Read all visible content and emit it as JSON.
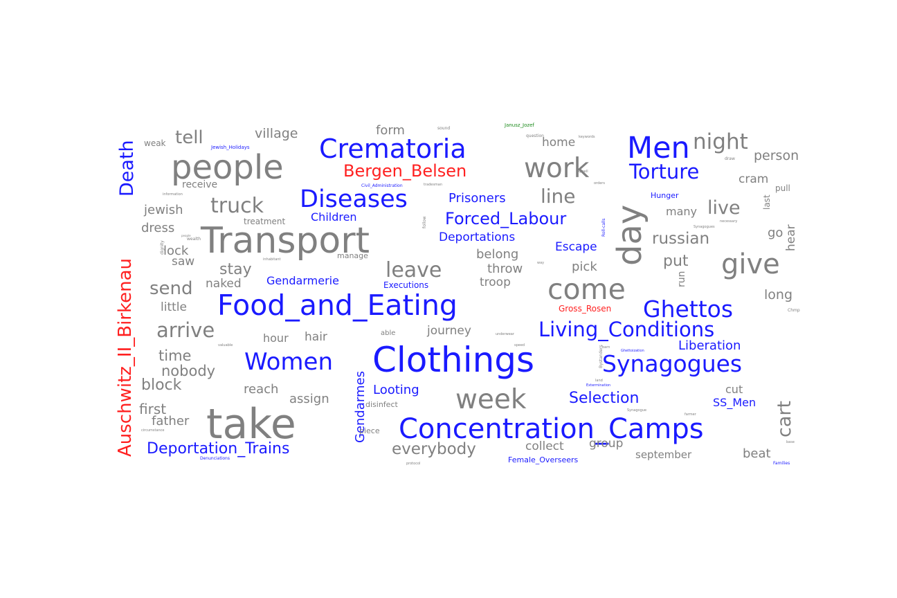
{
  "colors": {
    "gray": "#808080",
    "blue": "#1a1aff",
    "red": "#ff2020",
    "green": "#1a8a1a"
  },
  "words": [
    {
      "text": "take",
      "color": "gray"
    },
    {
      "text": "Clothings",
      "color": "blue"
    },
    {
      "text": "Transport",
      "color": "gray"
    },
    {
      "text": "Food_and_Eating",
      "color": "blue"
    },
    {
      "text": "people",
      "color": "gray"
    },
    {
      "text": "Concentration_Camps",
      "color": "blue"
    },
    {
      "text": "Crematoria",
      "color": "blue"
    },
    {
      "text": "Men",
      "color": "blue"
    },
    {
      "text": "day",
      "color": "gray"
    },
    {
      "text": "come",
      "color": "gray"
    },
    {
      "text": "week",
      "color": "gray"
    },
    {
      "text": "give",
      "color": "gray"
    },
    {
      "text": "work",
      "color": "gray"
    },
    {
      "text": "Synagogues",
      "color": "blue"
    },
    {
      "text": "Women",
      "color": "blue"
    },
    {
      "text": "Ghettos",
      "color": "blue"
    },
    {
      "text": "Diseases",
      "color": "blue"
    },
    {
      "text": "Living_Conditions",
      "color": "blue"
    },
    {
      "text": "Auschwitz_II_Birkenau",
      "color": "red"
    },
    {
      "text": "Death",
      "color": "blue"
    },
    {
      "text": "Torture",
      "color": "blue"
    },
    {
      "text": "night",
      "color": "gray"
    },
    {
      "text": "Bergen_Belsen",
      "color": "red"
    },
    {
      "text": "Deportation_Trains",
      "color": "blue"
    },
    {
      "text": "everybody",
      "color": "gray"
    },
    {
      "text": "leave",
      "color": "gray"
    },
    {
      "text": "truck",
      "color": "gray"
    },
    {
      "text": "arrive",
      "color": "gray"
    },
    {
      "text": "cart",
      "color": "gray"
    },
    {
      "text": "live",
      "color": "gray"
    },
    {
      "text": "line",
      "color": "gray"
    },
    {
      "text": "Forced_Labour",
      "color": "blue"
    },
    {
      "text": "Selection",
      "color": "blue"
    },
    {
      "text": "send",
      "color": "gray"
    },
    {
      "text": "tell",
      "color": "gray"
    },
    {
      "text": "russian",
      "color": "gray"
    },
    {
      "text": "put",
      "color": "gray"
    },
    {
      "text": "nobody",
      "color": "gray"
    },
    {
      "text": "time",
      "color": "gray"
    },
    {
      "text": "block",
      "color": "gray"
    },
    {
      "text": "stay",
      "color": "gray"
    },
    {
      "text": "person",
      "color": "gray"
    },
    {
      "text": "Liberation",
      "color": "blue"
    },
    {
      "text": "Looting",
      "color": "blue"
    },
    {
      "text": "Gendarmes",
      "color": "blue"
    },
    {
      "text": "Prisoners",
      "color": "blue"
    },
    {
      "text": "village",
      "color": "gray"
    },
    {
      "text": "form",
      "color": "gray"
    },
    {
      "text": "Deportations",
      "color": "blue"
    },
    {
      "text": "Escape",
      "color": "blue"
    },
    {
      "text": "SS_Men",
      "color": "blue"
    },
    {
      "text": "Children",
      "color": "blue"
    },
    {
      "text": "Gendarmerie",
      "color": "blue"
    },
    {
      "text": "reach",
      "color": "gray"
    },
    {
      "text": "assign",
      "color": "gray"
    },
    {
      "text": "first",
      "color": "gray"
    },
    {
      "text": "father",
      "color": "gray"
    },
    {
      "text": "lock",
      "color": "gray"
    },
    {
      "text": "saw",
      "color": "gray"
    },
    {
      "text": "jewish",
      "color": "gray"
    },
    {
      "text": "dress",
      "color": "gray"
    },
    {
      "text": "little",
      "color": "gray"
    },
    {
      "text": "naked",
      "color": "gray"
    },
    {
      "text": "hour",
      "color": "gray"
    },
    {
      "text": "hair",
      "color": "gray"
    },
    {
      "text": "journey",
      "color": "gray"
    },
    {
      "text": "belong",
      "color": "gray"
    },
    {
      "text": "throw",
      "color": "gray"
    },
    {
      "text": "troop",
      "color": "gray"
    },
    {
      "text": "pick",
      "color": "gray"
    },
    {
      "text": "collect",
      "color": "gray"
    },
    {
      "text": "group",
      "color": "gray"
    },
    {
      "text": "september",
      "color": "gray"
    },
    {
      "text": "beat",
      "color": "gray"
    },
    {
      "text": "cut",
      "color": "gray"
    },
    {
      "text": "long",
      "color": "gray"
    },
    {
      "text": "cram",
      "color": "gray"
    },
    {
      "text": "many",
      "color": "gray"
    },
    {
      "text": "go",
      "color": "gray"
    },
    {
      "text": "hear",
      "color": "gray"
    },
    {
      "text": "home",
      "color": "gray"
    },
    {
      "text": "run",
      "color": "gray"
    },
    {
      "text": "receive",
      "color": "gray"
    },
    {
      "text": "weak",
      "color": "gray"
    },
    {
      "text": "treatment",
      "color": "gray"
    },
    {
      "text": "manage",
      "color": "gray"
    },
    {
      "text": "disinfect",
      "color": "gray"
    },
    {
      "text": "piece",
      "color": "gray"
    },
    {
      "text": "able",
      "color": "gray"
    },
    {
      "text": "Hunger",
      "color": "blue"
    },
    {
      "text": "Executions",
      "color": "blue"
    },
    {
      "text": "Female_Overseers",
      "color": "blue"
    },
    {
      "text": "Gross_Rosen",
      "color": "red"
    },
    {
      "text": "Jewish_Holidays",
      "color": "blue"
    },
    {
      "text": "Civil_Administration",
      "color": "blue"
    },
    {
      "text": "Denunciations",
      "color": "blue"
    },
    {
      "text": "Families",
      "color": "blue"
    },
    {
      "text": "Janusz_Jozef",
      "color": "green"
    },
    {
      "text": "last",
      "color": "gray"
    },
    {
      "text": "pull",
      "color": "gray"
    },
    {
      "text": "sound",
      "color": "gray"
    },
    {
      "text": "question",
      "color": "gray"
    },
    {
      "text": "keywords",
      "color": "gray"
    },
    {
      "text": "draw",
      "color": "gray"
    },
    {
      "text": "orders",
      "color": "gray"
    },
    {
      "text": "information",
      "color": "gray"
    },
    {
      "text": "valuable",
      "color": "gray"
    },
    {
      "text": "speed",
      "color": "gray"
    },
    {
      "text": "protocol",
      "color": "gray"
    },
    {
      "text": "circumstance",
      "color": "gray"
    },
    {
      "text": "farmer",
      "color": "gray"
    },
    {
      "text": "base",
      "color": "gray"
    },
    {
      "text": "Synagogue",
      "color": "gray"
    },
    {
      "text": "tradesman",
      "color": "gray"
    },
    {
      "text": "inhabitant",
      "color": "gray"
    },
    {
      "text": "underwear",
      "color": "gray"
    },
    {
      "text": "necessary",
      "color": "gray"
    },
    {
      "text": "way",
      "color": "gray"
    },
    {
      "text": "Chmp",
      "color": "gray"
    },
    {
      "text": "Ghettoization",
      "color": "blue"
    },
    {
      "text": "Roll-calls",
      "color": "blue"
    },
    {
      "text": "Synagogues",
      "color": "gray"
    },
    {
      "text": "Bystanders",
      "color": "gray"
    },
    {
      "text": "Extermination",
      "color": "blue"
    },
    {
      "text": "wealth",
      "color": "gray"
    },
    {
      "text": "people",
      "color": "gray"
    },
    {
      "text": "follow",
      "color": "gray"
    },
    {
      "text": "dignity",
      "color": "gray"
    },
    {
      "text": "Appell",
      "color": "gray"
    },
    {
      "text": "land",
      "color": "gray"
    },
    {
      "text": "barn",
      "color": "gray"
    }
  ]
}
